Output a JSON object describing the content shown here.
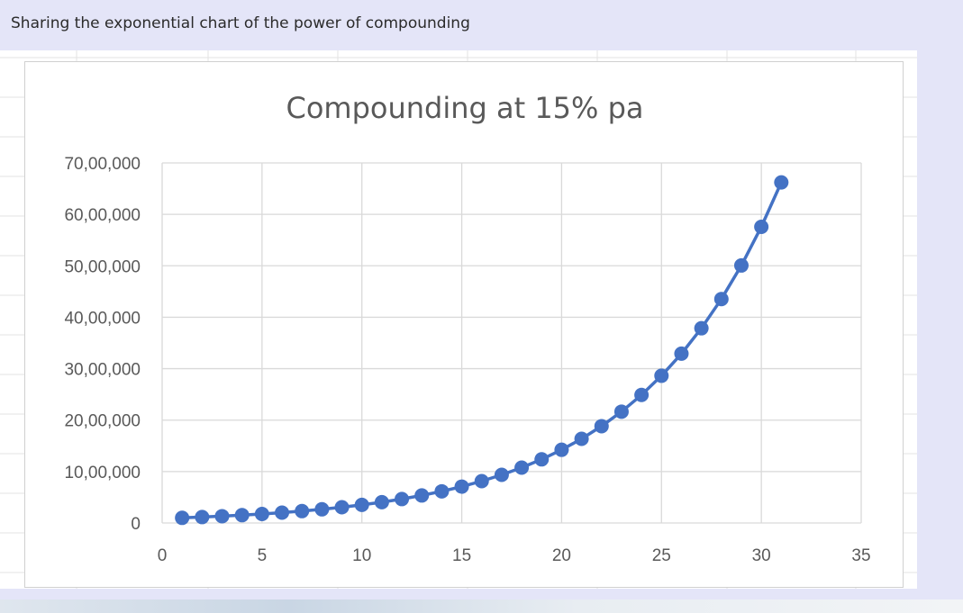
{
  "post": {
    "caption": "Sharing the exponential chart of the power of compounding"
  },
  "colors": {
    "series": "#4472c4",
    "gridline": "#d9d9d9",
    "page_background": "#e4e5f8"
  },
  "chart_data": {
    "type": "scatter",
    "title": "Compounding at 15% pa",
    "xlabel": "",
    "ylabel": "",
    "xlim": [
      0,
      35
    ],
    "ylim": [
      0,
      7000000
    ],
    "x_ticks": [
      0,
      5,
      10,
      15,
      20,
      25,
      30,
      35
    ],
    "y_ticks": [
      0,
      1000000,
      2000000,
      3000000,
      4000000,
      5000000,
      6000000,
      7000000
    ],
    "y_tick_labels": [
      "0",
      "10,00,000",
      "20,00,000",
      "30,00,000",
      "40,00,000",
      "50,00,000",
      "60,00,000",
      "70,00,000"
    ],
    "grid": true,
    "legend": "none",
    "markers": true,
    "line": true,
    "series": [
      {
        "x": [
          1,
          2,
          3,
          4,
          5,
          6,
          7,
          8,
          9,
          10,
          11,
          12,
          13,
          14,
          15,
          16,
          17,
          18,
          19,
          20,
          21,
          22,
          23,
          24,
          25,
          26,
          27,
          28,
          29,
          30,
          31
        ],
        "y": [
          100000,
          115000,
          132250,
          152088,
          174901,
          201136,
          231306,
          266002,
          305902,
          351788,
          404556,
          465239,
          535025,
          615279,
          707571,
          813706,
          935762,
          1076126,
          1237545,
          1423177,
          1636654,
          1882152,
          2164475,
          2489146,
          2862518,
          3291895,
          3785680,
          4353531,
          5006561,
          5757545,
          6621177
        ]
      }
    ]
  }
}
